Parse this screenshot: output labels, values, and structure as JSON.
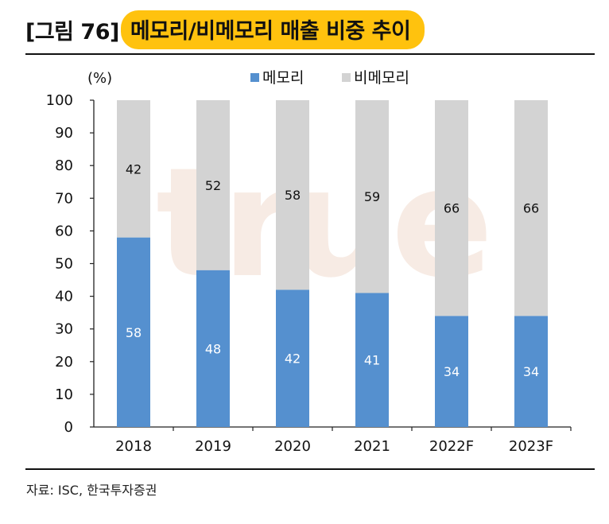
{
  "figure": {
    "number": "[그림 76]",
    "title": "메모리/비메모리 매출 비중 추이",
    "source": "자료: ISC, 한국투자증권",
    "watermark": "true"
  },
  "colors": {
    "accent": "#ffc20e",
    "memory": "#5590cf",
    "non_memory": "#d3d3d3"
  },
  "chart_data": {
    "type": "bar",
    "stacked": true,
    "unit_label": "(%)",
    "categories": [
      "2018",
      "2019",
      "2020",
      "2021",
      "2022F",
      "2023F"
    ],
    "series": [
      {
        "name": "메모리",
        "values": [
          58,
          48,
          42,
          41,
          34,
          34
        ]
      },
      {
        "name": "비메모리",
        "values": [
          42,
          52,
          58,
          59,
          66,
          66
        ]
      }
    ],
    "ylim": [
      0,
      100
    ],
    "yticks": [
      0,
      10,
      20,
      30,
      40,
      50,
      60,
      70,
      80,
      90,
      100
    ],
    "legend": "top-center",
    "grid": false
  }
}
